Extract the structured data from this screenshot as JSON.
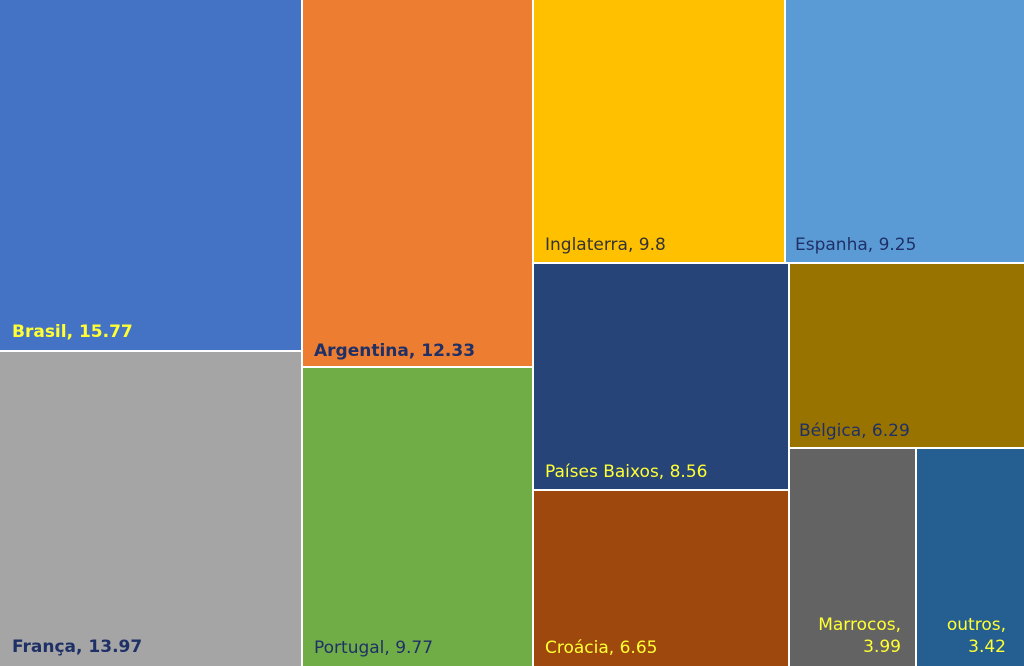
{
  "chart_data": {
    "type": "treemap",
    "items": [
      {
        "name": "Brasil",
        "value": 15.77,
        "label": "Brasil, 15.77",
        "color": "#4472C4",
        "text_color": "#FFFF33",
        "bold": true
      },
      {
        "name": "França",
        "value": 13.97,
        "label": "França, 13.97",
        "color": "#A5A5A5",
        "text_color": "#1F3067",
        "bold": true
      },
      {
        "name": "Argentina",
        "value": 12.33,
        "label": "Argentina, 12.33",
        "color": "#ED7D31",
        "text_color": "#1F3067",
        "bold": true
      },
      {
        "name": "Portugal",
        "value": 9.77,
        "label": "Portugal, 9.77",
        "color": "#70AD47",
        "text_color": "#1F3067",
        "bold": false
      },
      {
        "name": "Inglaterra",
        "value": 9.8,
        "label": "Inglaterra, 9.8",
        "color": "#FFC000",
        "text_color": "#333333",
        "bold": false
      },
      {
        "name": "Espanha",
        "value": 9.25,
        "label": "Espanha, 9.25",
        "color": "#5B9BD5",
        "text_color": "#1F3067",
        "bold": false
      },
      {
        "name": "Países Baixos",
        "value": 8.56,
        "label": "Países Baixos, 8.56",
        "color": "#264478",
        "text_color": "#FFFF33",
        "bold": false
      },
      {
        "name": "Croácia",
        "value": 6.65,
        "label": "Croácia, 6.65",
        "color": "#9E480E",
        "text_color": "#FFFF33",
        "bold": false
      },
      {
        "name": "Bélgica",
        "value": 6.29,
        "label": "Bélgica, 6.29",
        "color": "#997300",
        "text_color": "#1F3067",
        "bold": false
      },
      {
        "name": "Marrocos",
        "value": 3.99,
        "label_line1": "Marrocos,",
        "label_line2": "3.99",
        "color": "#636363",
        "text_color": "#FFFF33",
        "bold": false
      },
      {
        "name": "outros",
        "value": 3.42,
        "label_line1": "outros,",
        "label_line2": "3.42",
        "color": "#255E91",
        "text_color": "#FFFF33",
        "bold": false
      }
    ]
  }
}
